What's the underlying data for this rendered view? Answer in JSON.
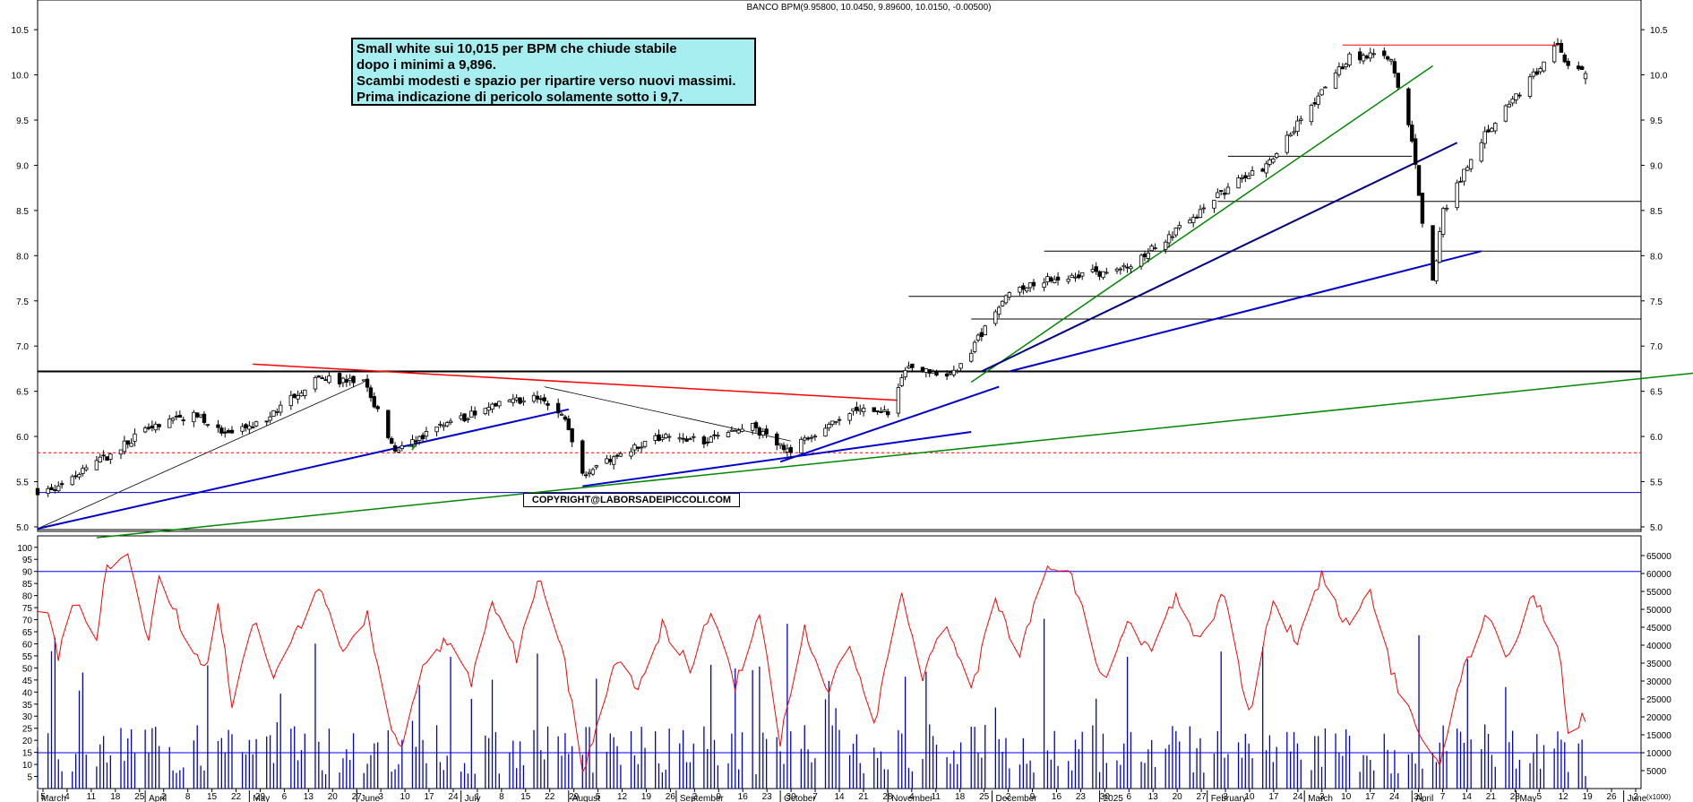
{
  "header": {
    "title": "BANCO BPM(9.95800, 10.0450, 9.89600, 10.0150, -0.00500)"
  },
  "comment_lines": [
    "Small white sui 10,015 per BPM che chiude stabile",
    "dopo i minimi a 9,896.",
    "Scambi modesti e spazio per ripartire verso nuovi massimi.",
    "Prima indicazione di pericolo solamente sotto i 9,7."
  ],
  "copyright": "COPYRIGHT@LABORSADEIPICCOLI.COM",
  "colors": {
    "up": "#ffffff",
    "down": "#000000",
    "oscillator": "#ff0000",
    "volume": "#0000cc",
    "trend_green": "#008800",
    "trend_blue": "#0000cc",
    "trend_red": "#ff0000"
  },
  "chart_data": [
    {
      "type": "candlestick",
      "title": "BANCO BPM",
      "ylim": [
        4.95,
        10.65
      ],
      "y_ticks": [
        "5.0",
        "5.5",
        "6.0",
        "6.5",
        "7.0",
        "7.5",
        "8.0",
        "8.5",
        "9.0",
        "9.5",
        "10.0",
        "10.5"
      ],
      "last_bar": {
        "open": 9.958,
        "high": 10.045,
        "low": 9.896,
        "close": 10.015,
        "change": -0.005
      },
      "anchors": [
        {
          "date": "2024-03-04",
          "close": 5.4
        },
        {
          "date": "2024-03-18",
          "close": 5.7
        },
        {
          "date": "2024-04-02",
          "close": 6.1
        },
        {
          "date": "2024-04-15",
          "close": 6.25
        },
        {
          "date": "2024-04-25",
          "close": 6.0
        },
        {
          "date": "2024-05-06",
          "close": 6.2
        },
        {
          "date": "2024-05-20",
          "close": 6.65
        },
        {
          "date": "2024-06-03",
          "close": 6.6
        },
        {
          "date": "2024-06-12",
          "close": 5.85
        },
        {
          "date": "2024-06-24",
          "close": 6.1
        },
        {
          "date": "2024-07-08",
          "close": 6.3
        },
        {
          "date": "2024-07-22",
          "close": 6.45
        },
        {
          "date": "2024-07-31",
          "close": 6.2
        },
        {
          "date": "2024-08-05",
          "close": 5.6
        },
        {
          "date": "2024-08-26",
          "close": 6.0
        },
        {
          "date": "2024-09-09",
          "close": 5.95
        },
        {
          "date": "2024-09-23",
          "close": 6.1
        },
        {
          "date": "2024-10-04",
          "close": 5.85
        },
        {
          "date": "2024-10-22",
          "close": 6.3
        },
        {
          "date": "2024-11-01",
          "close": 6.25
        },
        {
          "date": "2024-11-06",
          "close": 6.75
        },
        {
          "date": "2024-11-21",
          "close": 6.7
        },
        {
          "date": "2024-12-05",
          "close": 7.6
        },
        {
          "date": "2024-12-18",
          "close": 7.75
        },
        {
          "date": "2025-01-08",
          "close": 7.85
        },
        {
          "date": "2025-01-24",
          "close": 8.3
        },
        {
          "date": "2025-02-07",
          "close": 8.75
        },
        {
          "date": "2025-02-18",
          "close": 9.0
        },
        {
          "date": "2025-03-04",
          "close": 9.7
        },
        {
          "date": "2025-03-14",
          "close": 10.2
        },
        {
          "date": "2025-03-26",
          "close": 10.2
        },
        {
          "date": "2025-04-01",
          "close": 9.3
        },
        {
          "date": "2025-04-04",
          "close": 8.4
        },
        {
          "date": "2025-04-07",
          "close": 7.7
        },
        {
          "date": "2025-04-10",
          "close": 8.5
        },
        {
          "date": "2025-04-23",
          "close": 9.4
        },
        {
          "date": "2025-05-06",
          "close": 10.0
        },
        {
          "date": "2025-05-13",
          "close": 10.35
        },
        {
          "date": "2025-05-16",
          "close": 10.1
        },
        {
          "date": "2025-05-21",
          "close": 10.015
        }
      ],
      "horizontal_levels": [
        {
          "y": 6.72,
          "color": "#000000",
          "full": true
        },
        {
          "y": 5.82,
          "color": "#ff0000",
          "dashed": true,
          "full": true
        },
        {
          "y": 5.38,
          "color": "#0000cc",
          "full": true
        },
        {
          "y": 4.97,
          "color": "#000000",
          "full": true
        },
        {
          "y": 7.55,
          "from": "2024-11-07",
          "color": "#000000"
        },
        {
          "y": 7.3,
          "from": "2024-11-25",
          "color": "#000000"
        },
        {
          "y": 8.05,
          "from": "2024-12-16",
          "color": "#000000"
        },
        {
          "y": 8.6,
          "from": "2025-02-04",
          "color": "#000000"
        },
        {
          "y": 9.1,
          "from": "2025-02-07",
          "to": "2025-04-01",
          "color": "#000000"
        },
        {
          "y": 10.33,
          "from": "2025-03-12",
          "to": "2025-05-13",
          "color": "#ff0000"
        }
      ],
      "trendlines": [
        {
          "x1": "2024-03-01",
          "y1": 4.98,
          "x2": "2024-06-03",
          "y2": 6.6,
          "color": "#000000",
          "w": 0.8
        },
        {
          "x1": "2024-03-01",
          "y1": 4.98,
          "x2": "2024-08-01",
          "y2": 6.3,
          "color": "#0000cc",
          "w": 2
        },
        {
          "x1": "2024-03-18",
          "y1": 4.88,
          "x2": "2025-06-26",
          "y2": 6.72,
          "color": "#008800",
          "w": 1.5
        },
        {
          "x1": "2024-05-02",
          "y1": 6.8,
          "x2": "2024-11-04",
          "y2": 6.4,
          "color": "#ff0000",
          "w": 1.5
        },
        {
          "x1": "2024-07-25",
          "y1": 6.55,
          "x2": "2024-10-04",
          "y2": 5.95,
          "color": "#000000",
          "w": 0.8
        },
        {
          "x1": "2024-08-05",
          "y1": 5.45,
          "x2": "2024-11-25",
          "y2": 6.05,
          "color": "#0000cc",
          "w": 2
        },
        {
          "x1": "2024-10-01",
          "y1": 5.72,
          "x2": "2024-12-03",
          "y2": 6.55,
          "color": "#0000cc",
          "w": 2
        },
        {
          "x1": "2024-11-25",
          "y1": 6.6,
          "x2": "2025-04-07",
          "y2": 10.1,
          "color": "#008800",
          "w": 1.5
        },
        {
          "x1": "2024-11-28",
          "y1": 6.72,
          "x2": "2025-04-14",
          "y2": 9.25,
          "color": "#000080",
          "w": 2
        },
        {
          "x1": "2024-12-06",
          "y1": 6.72,
          "x2": "2025-04-21",
          "y2": 8.05,
          "color": "#0000cc",
          "w": 2
        }
      ]
    },
    {
      "type": "bar",
      "name": "volume",
      "ylim": [
        0,
        70000
      ],
      "y_ticks": [
        "5000",
        "10000",
        "15000",
        "20000",
        "25000",
        "30000",
        "35000",
        "40000",
        "45000",
        "50000",
        "55000",
        "60000",
        "65000"
      ],
      "unit_label": "(x1000)",
      "reference_level": 10000
    },
    {
      "type": "line",
      "name": "oscillator",
      "ylim": [
        0,
        104
      ],
      "y_ticks": [
        "5",
        "10",
        "15",
        "20",
        "25",
        "30",
        "35",
        "40",
        "45",
        "50",
        "55",
        "60",
        "65",
        "70",
        "75",
        "80",
        "85",
        "90",
        "95",
        "100"
      ],
      "reference_level": 90,
      "anchors": [
        {
          "date": "2024-03-04",
          "v": 72
        },
        {
          "date": "2024-03-07",
          "v": 55
        },
        {
          "date": "2024-03-12",
          "v": 78
        },
        {
          "date": "2024-03-18",
          "v": 62
        },
        {
          "date": "2024-03-21",
          "v": 92
        },
        {
          "date": "2024-03-27",
          "v": 96
        },
        {
          "date": "2024-04-02",
          "v": 60
        },
        {
          "date": "2024-04-05",
          "v": 88
        },
        {
          "date": "2024-04-12",
          "v": 65
        },
        {
          "date": "2024-04-18",
          "v": 48
        },
        {
          "date": "2024-04-22",
          "v": 75
        },
        {
          "date": "2024-04-26",
          "v": 35
        },
        {
          "date": "2024-05-02",
          "v": 70
        },
        {
          "date": "2024-05-08",
          "v": 45
        },
        {
          "date": "2024-05-14",
          "v": 62
        },
        {
          "date": "2024-05-22",
          "v": 84
        },
        {
          "date": "2024-05-28",
          "v": 55
        },
        {
          "date": "2024-06-04",
          "v": 72
        },
        {
          "date": "2024-06-10",
          "v": 30
        },
        {
          "date": "2024-06-14",
          "v": 15
        },
        {
          "date": "2024-06-20",
          "v": 50
        },
        {
          "date": "2024-06-27",
          "v": 62
        },
        {
          "date": "2024-07-04",
          "v": 44
        },
        {
          "date": "2024-07-10",
          "v": 78
        },
        {
          "date": "2024-07-17",
          "v": 55
        },
        {
          "date": "2024-07-24",
          "v": 88
        },
        {
          "date": "2024-07-30",
          "v": 60
        },
        {
          "date": "2024-08-05",
          "v": 8
        },
        {
          "date": "2024-08-09",
          "v": 25
        },
        {
          "date": "2024-08-15",
          "v": 55
        },
        {
          "date": "2024-08-21",
          "v": 40
        },
        {
          "date": "2024-08-28",
          "v": 68
        },
        {
          "date": "2024-09-05",
          "v": 50
        },
        {
          "date": "2024-09-11",
          "v": 75
        },
        {
          "date": "2024-09-18",
          "v": 42
        },
        {
          "date": "2024-09-25",
          "v": 72
        },
        {
          "date": "2024-10-01",
          "v": 20
        },
        {
          "date": "2024-10-08",
          "v": 68
        },
        {
          "date": "2024-10-14",
          "v": 40
        },
        {
          "date": "2024-10-21",
          "v": 58
        },
        {
          "date": "2024-10-28",
          "v": 25
        },
        {
          "date": "2024-11-05",
          "v": 82
        },
        {
          "date": "2024-11-11",
          "v": 45
        },
        {
          "date": "2024-11-18",
          "v": 70
        },
        {
          "date": "2024-11-25",
          "v": 40
        },
        {
          "date": "2024-12-02",
          "v": 78
        },
        {
          "date": "2024-12-09",
          "v": 55
        },
        {
          "date": "2024-12-16",
          "v": 90
        },
        {
          "date": "2024-12-23",
          "v": 92
        },
        {
          "date": "2025-01-02",
          "v": 45
        },
        {
          "date": "2025-01-09",
          "v": 70
        },
        {
          "date": "2025-01-16",
          "v": 55
        },
        {
          "date": "2025-01-23",
          "v": 80
        },
        {
          "date": "2025-01-30",
          "v": 60
        },
        {
          "date": "2025-02-06",
          "v": 82
        },
        {
          "date": "2025-02-13",
          "v": 30
        },
        {
          "date": "2025-02-20",
          "v": 78
        },
        {
          "date": "2025-02-27",
          "v": 60
        },
        {
          "date": "2025-03-06",
          "v": 88
        },
        {
          "date": "2025-03-13",
          "v": 68
        },
        {
          "date": "2025-03-20",
          "v": 80
        },
        {
          "date": "2025-03-27",
          "v": 45
        },
        {
          "date": "2025-04-03",
          "v": 22
        },
        {
          "date": "2025-04-09",
          "v": 8
        },
        {
          "date": "2025-04-15",
          "v": 45
        },
        {
          "date": "2025-04-22",
          "v": 72
        },
        {
          "date": "2025-04-29",
          "v": 55
        },
        {
          "date": "2025-05-06",
          "v": 80
        },
        {
          "date": "2025-05-13",
          "v": 60
        },
        {
          "date": "2025-05-16",
          "v": 25
        },
        {
          "date": "2025-05-21",
          "v": 30
        }
      ]
    }
  ],
  "x_axis": {
    "start": "2024-03-01",
    "end": "2025-06-06",
    "day_ticks": [
      "5",
      "4",
      "11",
      "18",
      "25",
      "2",
      "8",
      "15",
      "22",
      "29",
      "6",
      "13",
      "20",
      "27",
      "3",
      "10",
      "17",
      "24",
      "1",
      "8",
      "15",
      "22",
      "29",
      "5",
      "12",
      "19",
      "26",
      "2",
      "9",
      "16",
      "23",
      "30",
      "7",
      "14",
      "21",
      "28",
      "4",
      "11",
      "18",
      "25",
      "2",
      "9",
      "16",
      "23",
      "30",
      "6",
      "13",
      "20",
      "27",
      "3",
      "10",
      "17",
      "24",
      "3",
      "10",
      "17",
      "24",
      "31",
      "7",
      "14",
      "21",
      "28",
      "5",
      "12",
      "19",
      "26",
      "2"
    ],
    "month_labels": [
      "March",
      "April",
      "May",
      "June",
      "July",
      "August",
      "September",
      "October",
      "November",
      "December",
      "2025",
      "February",
      "March",
      "April",
      "May",
      "June"
    ]
  }
}
